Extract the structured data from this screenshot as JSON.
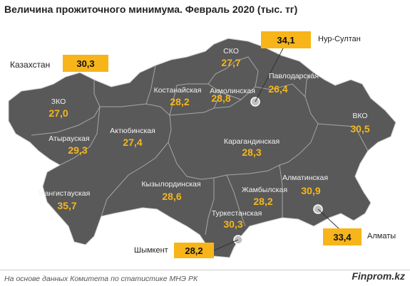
{
  "title": "Величина прожиточного минимума. Февраль 2020 (тыс. тг)",
  "country": {
    "label": "Казахстан",
    "value": "30,3"
  },
  "regions": [
    {
      "key": "sko",
      "name": "СКО",
      "value": "27,7"
    },
    {
      "key": "zko",
      "name": "ЗКО",
      "value": "27,0"
    },
    {
      "key": "kostanay",
      "name": "Костанайская",
      "value": "28,2"
    },
    {
      "key": "akmola",
      "name": "Акмолинская",
      "value": "28,8"
    },
    {
      "key": "pavlodar",
      "name": "Павлодарская",
      "value": "26,4"
    },
    {
      "key": "vko",
      "name": "ВКО",
      "value": "30,5"
    },
    {
      "key": "atyrau",
      "name": "Атырауская",
      "value": "29,3"
    },
    {
      "key": "aktobe",
      "name": "Актюбинская",
      "value": "27,4"
    },
    {
      "key": "karaganda",
      "name": "Карагандинская",
      "value": "28,3"
    },
    {
      "key": "almaty_reg",
      "name": "Алматинская",
      "value": "30,9"
    },
    {
      "key": "kyzylorda",
      "name": "Кызылординская",
      "value": "28,6"
    },
    {
      "key": "zhambyl",
      "name": "Жамбылская",
      "value": "28,2"
    },
    {
      "key": "mangystau",
      "name": "Мангистауская",
      "value": "35,7"
    },
    {
      "key": "turkestan",
      "name": "Туркестанская",
      "value": "30,3"
    }
  ],
  "cities": [
    {
      "key": "nursultan",
      "name": "Нур-Султан",
      "value": "34,1"
    },
    {
      "key": "almaty",
      "name": "Алматы",
      "value": "33,4"
    },
    {
      "key": "shymkent",
      "name": "Шымкент",
      "value": "28,2"
    }
  ],
  "colors": {
    "map_fill": "#595959",
    "border": "#a6a6a6",
    "accent": "#f7b51a",
    "value_text": "#f5b71a"
  },
  "footer": {
    "source": "На основе данных Комитета по статистике МНЭ РК",
    "brand": "Finprom.kz"
  }
}
